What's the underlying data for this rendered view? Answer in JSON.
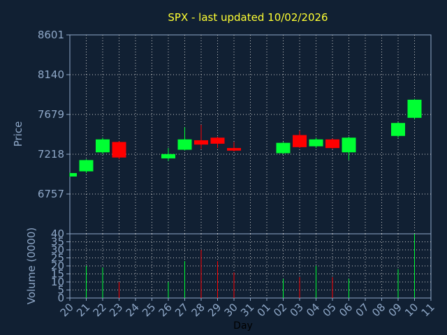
{
  "chart_data": {
    "type": "candlestick",
    "title": "SPX - last updated 10/02/2026",
    "xlabel": "Day",
    "price_ylabel": "Price",
    "volume_ylabel": "Volume (0000)",
    "x_ticks": [
      "20",
      "21",
      "22",
      "23",
      "24",
      "25",
      "26",
      "27",
      "28",
      "29",
      "30",
      "31",
      "01",
      "02",
      "03",
      "04",
      "05",
      "06",
      "07",
      "08",
      "09",
      "10",
      "11"
    ],
    "price_ticks": [
      "8601",
      "8140",
      "7679",
      "7218",
      "6757"
    ],
    "price_ylim": [
      6296,
      8601
    ],
    "volume_ticks": [
      "40",
      "35",
      "30",
      "25",
      "20",
      "15",
      "10",
      "5",
      "0"
    ],
    "volume_ylim": [
      0,
      40
    ],
    "colors": {
      "up": "#00ff33",
      "down": "#ff0000",
      "grid": "#c8c8c8",
      "panel_bg": "#112033",
      "axis": "#8fa8c8"
    },
    "candles": [
      {
        "day": "20",
        "open": 6960,
        "close": 7000,
        "high": 7005,
        "low": 6955,
        "volume": 0
      },
      {
        "day": "21",
        "open": 7020,
        "close": 7150,
        "high": 7160,
        "low": 7000,
        "volume": 20
      },
      {
        "day": "22",
        "open": 7240,
        "close": 7390,
        "high": 7410,
        "low": 7220,
        "volume": 19
      },
      {
        "day": "23",
        "open": 7360,
        "close": 7180,
        "high": 7370,
        "low": 7160,
        "volume": 10
      },
      {
        "day": "26",
        "open": 7170,
        "close": 7220,
        "high": 7290,
        "low": 7140,
        "volume": 10
      },
      {
        "day": "27",
        "open": 7270,
        "close": 7390,
        "high": 7530,
        "low": 7260,
        "volume": 23
      },
      {
        "day": "28",
        "open": 7380,
        "close": 7330,
        "high": 7560,
        "low": 7280,
        "volume": 30
      },
      {
        "day": "29",
        "open": 7410,
        "close": 7340,
        "high": 7420,
        "low": 7290,
        "volume": 23
      },
      {
        "day": "30",
        "open": 7290,
        "close": 7260,
        "high": 7360,
        "low": 7250,
        "volume": 16
      },
      {
        "day": "02",
        "open": 7230,
        "close": 7350,
        "high": 7360,
        "low": 7220,
        "volume": 12
      },
      {
        "day": "03",
        "open": 7440,
        "close": 7300,
        "high": 7490,
        "low": 7290,
        "volume": 13
      },
      {
        "day": "04",
        "open": 7310,
        "close": 7390,
        "high": 7410,
        "low": 7290,
        "volume": 20
      },
      {
        "day": "05",
        "open": 7390,
        "close": 7290,
        "high": 7400,
        "low": 7280,
        "volume": 13
      },
      {
        "day": "06",
        "open": 7240,
        "close": 7410,
        "high": 7420,
        "low": 7150,
        "volume": 12
      },
      {
        "day": "09",
        "open": 7430,
        "close": 7580,
        "high": 7590,
        "low": 7410,
        "volume": 18
      },
      {
        "day": "10",
        "open": 7640,
        "close": 7850,
        "high": 7860,
        "low": 7620,
        "volume": 40
      }
    ]
  }
}
